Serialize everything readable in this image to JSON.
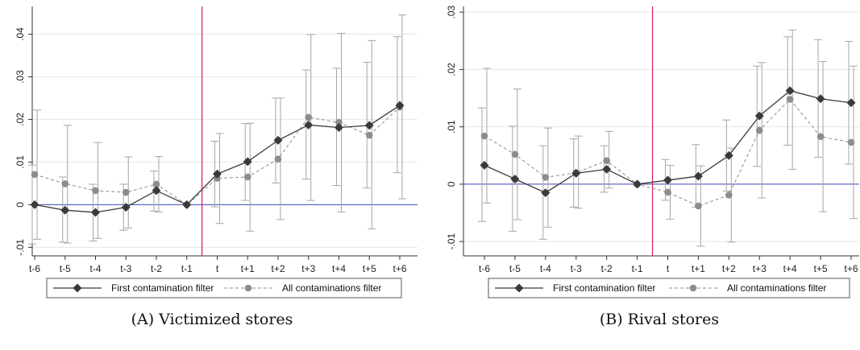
{
  "chart_data": [
    {
      "type": "line",
      "caption": "(A) Victimized stores",
      "categories": [
        "t-6",
        "t-5",
        "t-4",
        "t-3",
        "t-2",
        "t-1",
        "t",
        "t+1",
        "t+2",
        "t+3",
        "t+4",
        "t+5",
        "t+6"
      ],
      "event_category": "t",
      "ylim": [
        -0.012,
        0.0465
      ],
      "yticks": [
        -0.01,
        0,
        0.01,
        0.02,
        0.03,
        0.04
      ],
      "ytick_labels": [
        "-.01",
        "0",
        ".01",
        ".02",
        ".03",
        ".04"
      ],
      "grid": true,
      "legend_placement": "bottom",
      "series": [
        {
          "name": "First contamination filter",
          "style": "solid-diamond",
          "color": "#3a3a3a",
          "values": [
            0.0,
            -0.0013,
            -0.0018,
            -0.0006,
            0.0033,
            0.0,
            0.0072,
            0.0101,
            0.0151,
            0.0187,
            0.0181,
            0.0186,
            0.0233
          ],
          "ci_low": [
            -0.0092,
            -0.0088,
            -0.0085,
            -0.006,
            -0.0015,
            null,
            -0.0005,
            0.001,
            0.0051,
            0.006,
            0.0045,
            0.0039,
            0.0075
          ],
          "ci_high": [
            0.0093,
            0.0065,
            0.0048,
            0.0048,
            0.0079,
            null,
            0.0149,
            0.019,
            0.025,
            0.0316,
            0.032,
            0.0334,
            0.0394
          ]
        },
        {
          "name": "All contaminations filter",
          "style": "dashed-circle",
          "color": "#8c8c8c",
          "values": [
            0.0071,
            0.0049,
            0.0033,
            0.0029,
            0.0048,
            0.0,
            0.0062,
            0.0065,
            0.0107,
            0.0205,
            0.0193,
            0.0163,
            0.0229
          ],
          "ci_low": [
            -0.0081,
            -0.009,
            -0.0079,
            -0.0055,
            -0.0017,
            null,
            -0.0044,
            -0.0062,
            -0.0035,
            0.001,
            -0.0017,
            -0.0057,
            0.0014
          ],
          "ci_high": [
            0.0222,
            0.0186,
            0.0146,
            0.0112,
            0.0113,
            null,
            0.0167,
            0.0191,
            0.025,
            0.0399,
            0.0402,
            0.0385,
            0.0445
          ]
        }
      ]
    },
    {
      "type": "line",
      "caption": "(B) Rival stores",
      "categories": [
        "t-6",
        "t-5",
        "t-4",
        "t-3",
        "t-2",
        "t-1",
        "t",
        "t+1",
        "t+2",
        "t+3",
        "t+4",
        "t+5",
        "t+6"
      ],
      "event_category": "t",
      "ylim": [
        -0.0125,
        0.031
      ],
      "yticks": [
        -0.01,
        0,
        0.01,
        0.02,
        0.03
      ],
      "ytick_labels": [
        "-.01",
        "0",
        ".01",
        ".02",
        ".03"
      ],
      "grid": true,
      "legend_placement": "bottom",
      "series": [
        {
          "name": "First contamination filter",
          "style": "solid-diamond",
          "color": "#3a3a3a",
          "values": [
            0.0033,
            0.0009,
            -0.0015,
            0.0019,
            0.0026,
            0.0,
            0.0007,
            0.0014,
            0.005,
            0.0119,
            0.0163,
            0.0149,
            0.0142
          ],
          "ci_low": [
            -0.0065,
            -0.0082,
            -0.0096,
            -0.004,
            -0.0014,
            null,
            -0.0028,
            -0.004,
            -0.0012,
            0.0031,
            0.0068,
            0.0047,
            0.0035
          ],
          "ci_high": [
            0.0133,
            0.0101,
            0.0067,
            0.0079,
            0.0067,
            null,
            0.0043,
            0.0069,
            0.0112,
            0.0206,
            0.0257,
            0.0252,
            0.0249
          ]
        },
        {
          "name": "All contaminations filter",
          "style": "dashed-circle",
          "color": "#8c8c8c",
          "values": [
            0.0084,
            0.0052,
            0.0012,
            0.002,
            0.0041,
            0.0,
            -0.0014,
            -0.0038,
            -0.0019,
            0.0094,
            0.0148,
            0.0083,
            0.0073
          ],
          "ci_low": [
            -0.0033,
            -0.0062,
            -0.0075,
            -0.0042,
            -0.0007,
            null,
            -0.0061,
            -0.0108,
            -0.0101,
            -0.0024,
            0.0026,
            -0.0048,
            -0.006
          ],
          "ci_high": [
            0.0202,
            0.0166,
            0.0098,
            0.0084,
            0.0092,
            null,
            0.0033,
            0.0032,
            0.0063,
            0.0212,
            0.0269,
            0.0214,
            0.0206
          ]
        }
      ]
    }
  ]
}
